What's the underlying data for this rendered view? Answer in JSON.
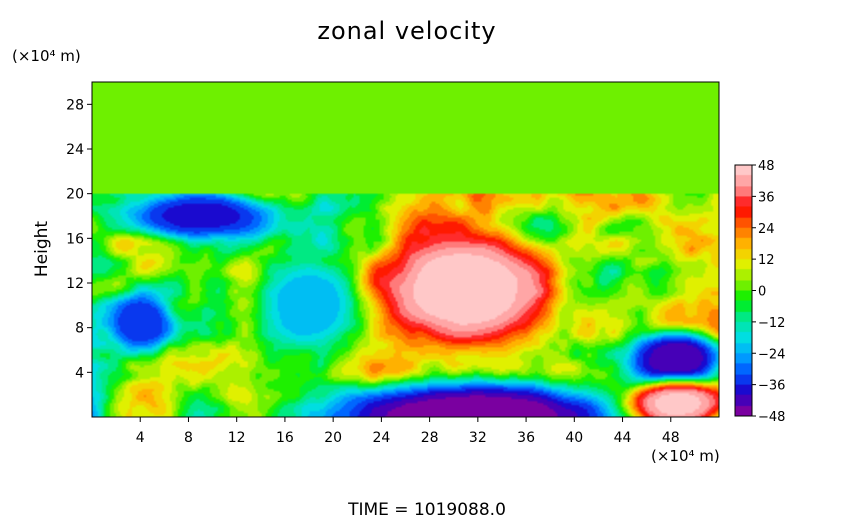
{
  "chart_data": {
    "type": "heatmap",
    "title": "zonal velocity",
    "ylabel": "Height",
    "y_unit": "(×10⁴ m)",
    "x_unit": "(×10⁴ m)",
    "footer": "TIME  =  1019088.0",
    "xlim": [
      0,
      52
    ],
    "ylim": [
      0,
      30
    ],
    "x_ticks": [
      4,
      8,
      12,
      16,
      20,
      24,
      28,
      32,
      36,
      40,
      44,
      48
    ],
    "y_ticks": [
      4,
      8,
      12,
      16,
      20,
      24,
      28
    ],
    "colorbar": {
      "min": -48,
      "max": 48,
      "ticks": [
        48,
        36,
        24,
        12,
        0,
        -12,
        -24,
        -36,
        -48
      ],
      "tick_labels": [
        "48",
        "36",
        "24",
        "12",
        "0",
        "−12",
        "−24",
        "−36",
        "−48"
      ],
      "colors": [
        "#7a00a0",
        "#1e00c8",
        "#0050ff",
        "#00a8ff",
        "#00e0e0",
        "#00e890",
        "#00f000",
        "#8cf000",
        "#e8f000",
        "#ffb400",
        "#ff6400",
        "#ff0000",
        "#ff8c8c",
        "#ffc8c8"
      ]
    },
    "field_features": [
      {
        "kind": "uniform_layer",
        "z_range": [
          20,
          30
        ],
        "value": 0
      },
      {
        "kind": "core",
        "x": 31,
        "z": 11.5,
        "rx": 6.5,
        "rz": 5,
        "value": 48
      },
      {
        "kind": "core",
        "x": 31.5,
        "z": 0,
        "rx": 12,
        "rz": 3,
        "value": -48
      },
      {
        "kind": "core",
        "x": 48.5,
        "z": 5.3,
        "rx": 3.5,
        "rz": 2.2,
        "value": -44
      },
      {
        "kind": "core",
        "x": 48.5,
        "z": 1.2,
        "rx": 3.5,
        "rz": 1.8,
        "value": 46
      },
      {
        "kind": "core",
        "x": 9,
        "z": 18,
        "rx": 6,
        "rz": 2,
        "value": -38
      },
      {
        "kind": "core",
        "x": 4,
        "z": 8.5,
        "rx": 2.5,
        "rz": 2.5,
        "value": -36
      },
      {
        "kind": "core",
        "x": 18,
        "z": 10,
        "rx": 4,
        "rz": 4,
        "value": -24
      }
    ]
  }
}
